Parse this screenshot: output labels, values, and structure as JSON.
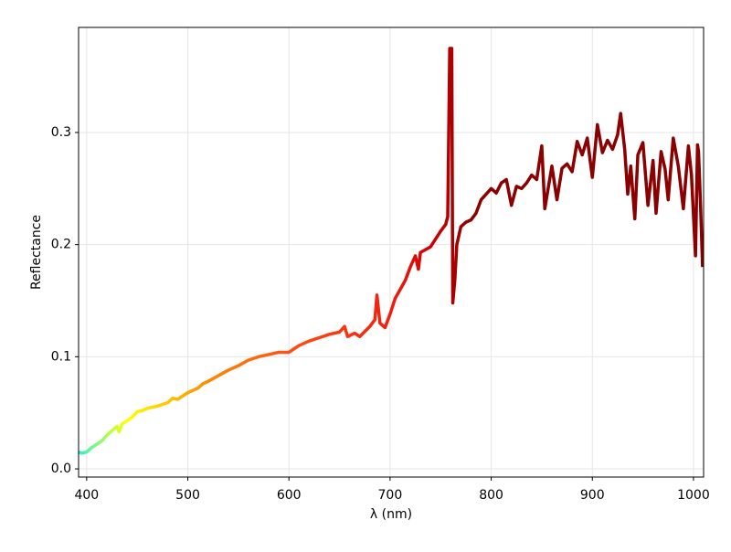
{
  "chart_data": {
    "type": "line",
    "xlabel": "λ (nm)",
    "ylabel": "Reflectance",
    "x": [
      392,
      395,
      400,
      405,
      410,
      415,
      420,
      425,
      430,
      432,
      435,
      440,
      445,
      450,
      455,
      460,
      470,
      480,
      485,
      490,
      500,
      510,
      515,
      520,
      530,
      540,
      550,
      560,
      570,
      580,
      590,
      600,
      605,
      610,
      620,
      630,
      640,
      650,
      655,
      658,
      665,
      670,
      680,
      685,
      687,
      690,
      695,
      700,
      705,
      710,
      715,
      720,
      725,
      728,
      730,
      740,
      745,
      750,
      755,
      757,
      759,
      761,
      762,
      764,
      766,
      770,
      775,
      780,
      785,
      790,
      795,
      800,
      805,
      810,
      815,
      820,
      825,
      830,
      835,
      840,
      845,
      850,
      853,
      860,
      865,
      870,
      875,
      880,
      885,
      890,
      895,
      900,
      905,
      910,
      915,
      920,
      925,
      928,
      932,
      935,
      938,
      942,
      945,
      950,
      955,
      960,
      963,
      968,
      972,
      975,
      980,
      985,
      990,
      995,
      998,
      1002,
      1004,
      1005,
      1007,
      1009
    ],
    "series": [
      {
        "values": [
          0.015,
          0.014,
          0.015,
          0.019,
          0.022,
          0.025,
          0.03,
          0.034,
          0.038,
          0.033,
          0.04,
          0.043,
          0.046,
          0.051,
          0.052,
          0.054,
          0.056,
          0.059,
          0.063,
          0.062,
          0.068,
          0.072,
          0.076,
          0.078,
          0.083,
          0.088,
          0.092,
          0.097,
          0.1,
          0.102,
          0.104,
          0.104,
          0.107,
          0.11,
          0.114,
          0.117,
          0.12,
          0.122,
          0.127,
          0.118,
          0.121,
          0.118,
          0.127,
          0.133,
          0.155,
          0.13,
          0.126,
          0.138,
          0.152,
          0.16,
          0.168,
          0.18,
          0.19,
          0.178,
          0.193,
          0.198,
          0.205,
          0.212,
          0.218,
          0.225,
          0.375,
          0.375,
          0.148,
          0.168,
          0.2,
          0.216,
          0.22,
          0.222,
          0.228,
          0.24,
          0.245,
          0.25,
          0.246,
          0.255,
          0.258,
          0.235,
          0.252,
          0.25,
          0.255,
          0.262,
          0.258,
          0.288,
          0.232,
          0.27,
          0.24,
          0.268,
          0.272,
          0.265,
          0.292,
          0.28,
          0.295,
          0.26,
          0.307,
          0.282,
          0.293,
          0.285,
          0.298,
          0.317,
          0.285,
          0.245,
          0.27,
          0.223,
          0.28,
          0.291,
          0.235,
          0.275,
          0.228,
          0.283,
          0.267,
          0.24,
          0.295,
          0.27,
          0.232,
          0.288,
          0.262,
          0.19,
          0.289,
          0.283,
          0.235,
          0.18
        ]
      }
    ],
    "colormap": [
      {
        "x": 392,
        "color": "#30f0d0"
      },
      {
        "x": 420,
        "color": "#a8ff50"
      },
      {
        "x": 440,
        "color": "#ffff00"
      },
      {
        "x": 480,
        "color": "#ffc400"
      },
      {
        "x": 520,
        "color": "#ff8a00"
      },
      {
        "x": 600,
        "color": "#ff5014"
      },
      {
        "x": 700,
        "color": "#f02010"
      },
      {
        "x": 740,
        "color": "#d00000"
      },
      {
        "x": 780,
        "color": "#8b0000"
      },
      {
        "x": 1010,
        "color": "#8b0000"
      }
    ],
    "xlim": [
      392,
      1010
    ],
    "ylim": [
      -0.0073,
      0.3937
    ],
    "xticks": [
      400,
      500,
      600,
      700,
      800,
      900,
      1000
    ],
    "yticks": [
      {
        "value": 0,
        "label": "0.0"
      },
      0.1,
      0.2,
      0.3
    ],
    "grid": true
  }
}
